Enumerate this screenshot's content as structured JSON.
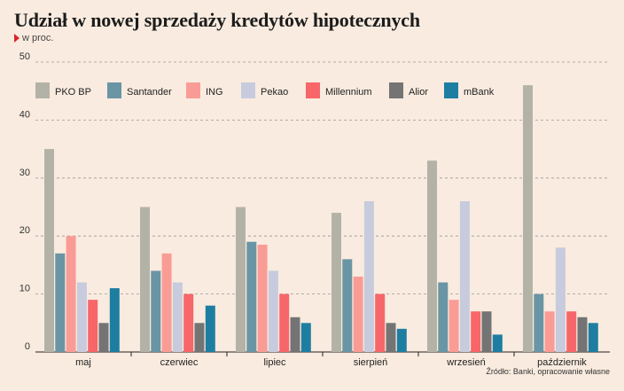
{
  "title": "Udział w nowej sprzedaży kredytów hipotecznych",
  "subtitle": "w proc.",
  "source": "Źródło: Banki, opracowanie własne",
  "chart_data": {
    "type": "bar",
    "categories": [
      "maj",
      "czerwiec",
      "lipiec",
      "sierpień",
      "wrzesień",
      "październik"
    ],
    "ylim": [
      0,
      50
    ],
    "yticks": [
      0,
      10,
      20,
      30,
      40,
      50
    ],
    "grid": "horizontal dashed",
    "legend_position": "top",
    "series": [
      {
        "name": "PKO BP",
        "color": "#b3b2a7",
        "values": [
          35,
          25,
          25,
          24,
          33,
          46
        ]
      },
      {
        "name": "Santander",
        "color": "#6a95a5",
        "values": [
          17,
          14,
          19,
          16,
          12,
          10
        ]
      },
      {
        "name": "ING",
        "color": "#fa9c96",
        "values": [
          20,
          17,
          18.5,
          13,
          9,
          7
        ]
      },
      {
        "name": "Pekao",
        "color": "#c7cbdd",
        "values": [
          12,
          12,
          14,
          26,
          26,
          18
        ]
      },
      {
        "name": "Millennium",
        "color": "#f76669",
        "values": [
          9,
          10,
          10,
          10,
          7,
          7
        ]
      },
      {
        "name": "Alior",
        "color": "#747474",
        "values": [
          5,
          5,
          6,
          5,
          7,
          6
        ]
      },
      {
        "name": "mBank",
        "color": "#1e7ea1",
        "values": [
          11,
          8,
          5,
          4,
          3,
          5
        ]
      }
    ]
  }
}
